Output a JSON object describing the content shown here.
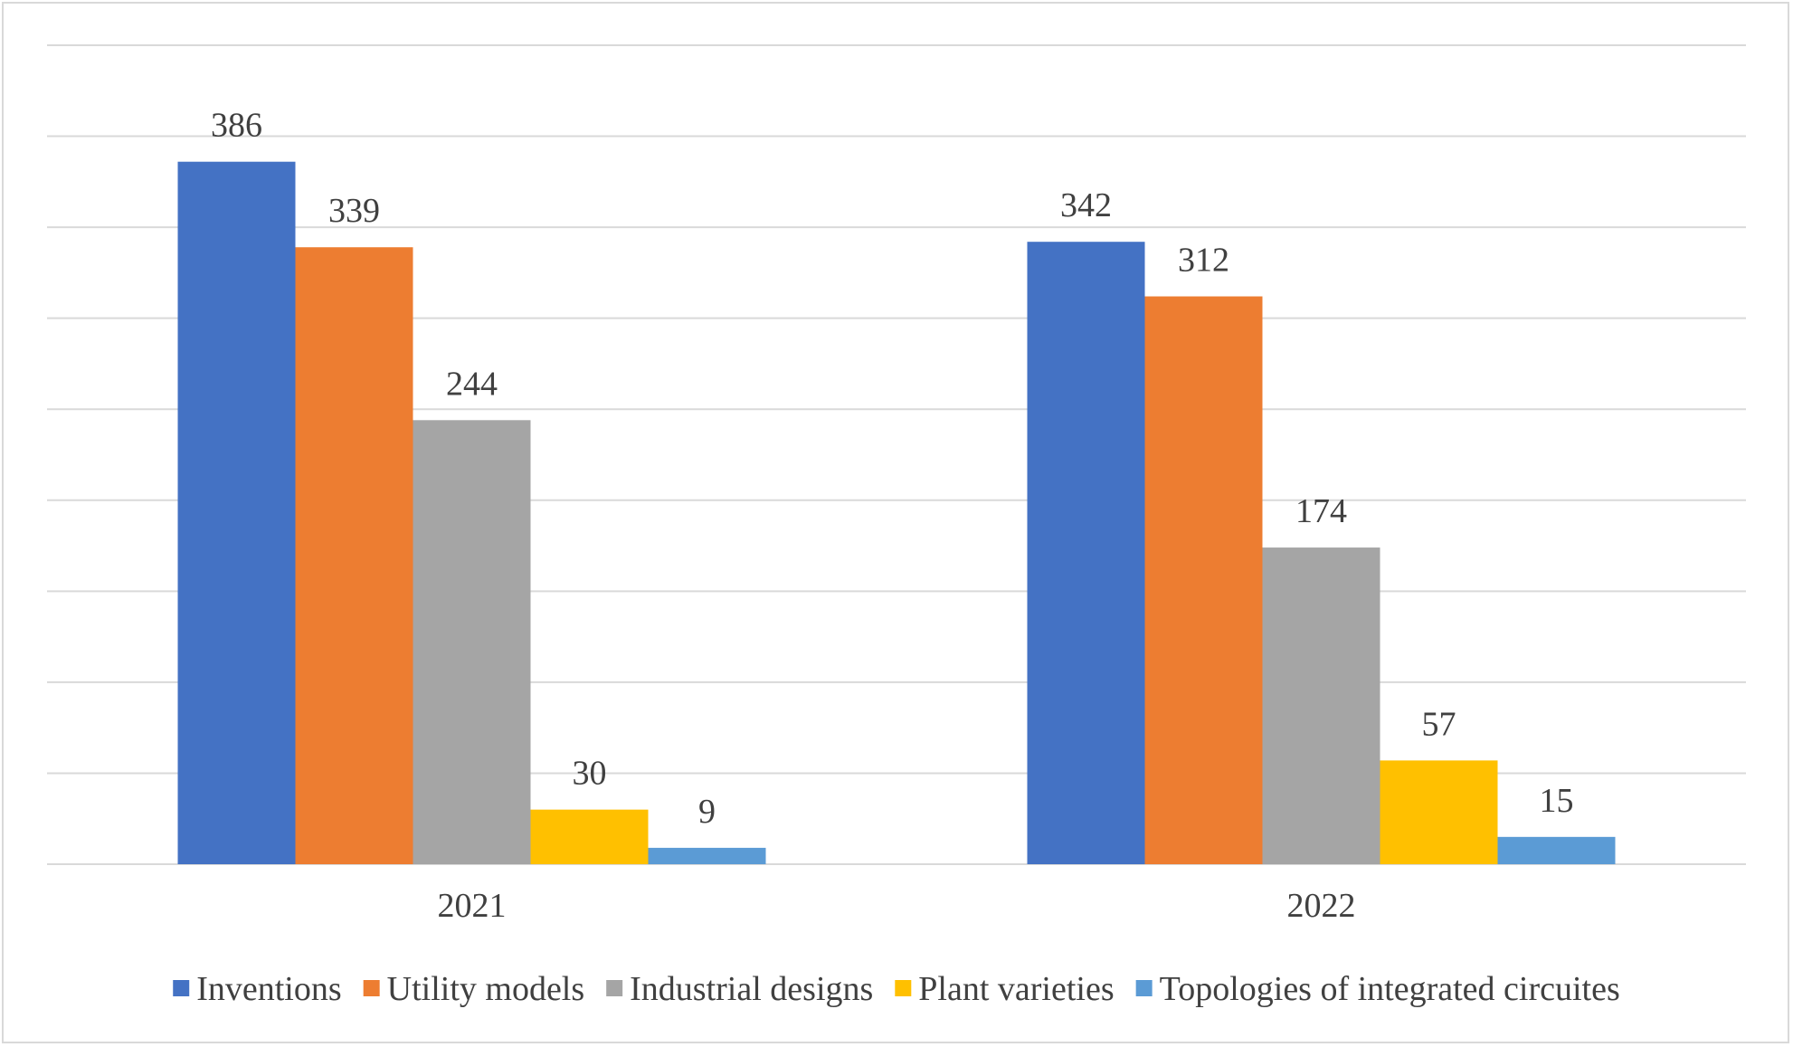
{
  "chart_data": {
    "type": "bar",
    "title": "",
    "xlabel": "",
    "ylabel": "",
    "categories": [
      "2021",
      "2022"
    ],
    "ylim": [
      0,
      450
    ],
    "grid": true,
    "legend_position": "bottom",
    "series": [
      {
        "name": "Inventions",
        "color": "#4472c4",
        "values": [
          386,
          342
        ]
      },
      {
        "name": "Utility models",
        "color": "#ed7d31",
        "values": [
          339,
          312
        ]
      },
      {
        "name": "Industrial designs",
        "color": "#a5a5a5",
        "values": [
          244,
          174
        ]
      },
      {
        "name": "Plant varieties",
        "color": "#ffc000",
        "values": [
          30,
          57
        ]
      },
      {
        "name": "Topologies of integrated circuites",
        "color": "#5b9bd5",
        "values": [
          9,
          15
        ]
      }
    ]
  }
}
